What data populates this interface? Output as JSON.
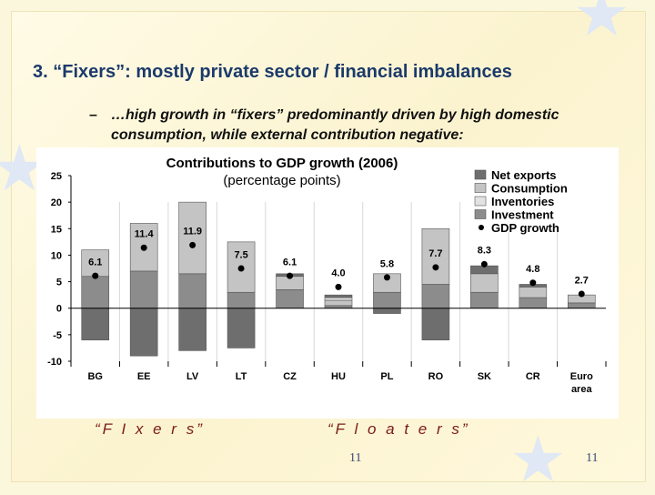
{
  "slide": {
    "title": "3. “Fixers”: mostly private sector / financial imbalances",
    "bullet_dash": "–",
    "bullet_text": "…high growth in “fixers” predominantly driven by high domestic consumption, while external contribution negative:",
    "label_fixers": "“F I x e r s”",
    "label_floaters": "“F l o a t e r s”",
    "page_number_center": "11",
    "page_number_right": "11"
  },
  "colors": {
    "net_exports": "#6e6e6e",
    "consumption": "#c4c4c4",
    "inventories": "#e2e2e2",
    "investment": "#8c8c8c",
    "dot": "#000000"
  },
  "chart_data": {
    "type": "bar",
    "stacked": true,
    "title": "Contributions to GDP growth (2006)",
    "subtitle": "(percentage points)",
    "categories": [
      "BG",
      "EE",
      "LV",
      "LT",
      "CZ",
      "HU",
      "PL",
      "RO",
      "SK",
      "CR",
      "Euro area"
    ],
    "ylim": [
      -10,
      25
    ],
    "yticks": [
      25,
      20,
      15,
      10,
      5,
      0,
      -5,
      -10
    ],
    "legend": [
      "Net exports",
      "Consumption",
      "Inventories",
      "Investment",
      "GDP growth"
    ],
    "legend_position": "top-right",
    "series": [
      {
        "name": "Investment",
        "values": [
          6.0,
          7.0,
          6.5,
          3.0,
          3.5,
          0.5,
          3.0,
          4.5,
          3.0,
          2.0,
          1.0
        ]
      },
      {
        "name": "Consumption",
        "values": [
          5.0,
          9.0,
          13.5,
          9.5,
          2.5,
          1.0,
          3.5,
          10.5,
          3.5,
          2.0,
          1.5
        ]
      },
      {
        "name": "Inventories",
        "values": [
          0,
          0,
          0,
          0,
          0,
          0.5,
          0,
          0,
          0,
          0,
          0
        ]
      },
      {
        "name": "Net exports",
        "values": [
          -6.0,
          -9.0,
          -8.0,
          -7.5,
          0.5,
          0.5,
          -1.0,
          -6.0,
          1.5,
          0.5,
          0.0
        ]
      }
    ],
    "gdp_growth": {
      "name": "GDP growth",
      "values": [
        6.1,
        11.4,
        11.9,
        7.5,
        6.1,
        4.0,
        5.8,
        7.7,
        8.3,
        4.8,
        2.7
      ],
      "labels": [
        "6.1",
        "11.4",
        "11.9",
        "7.5",
        "6.1",
        "4.0",
        "5.8",
        "7.7",
        "8.3",
        "4.8",
        "2.7"
      ]
    }
  }
}
